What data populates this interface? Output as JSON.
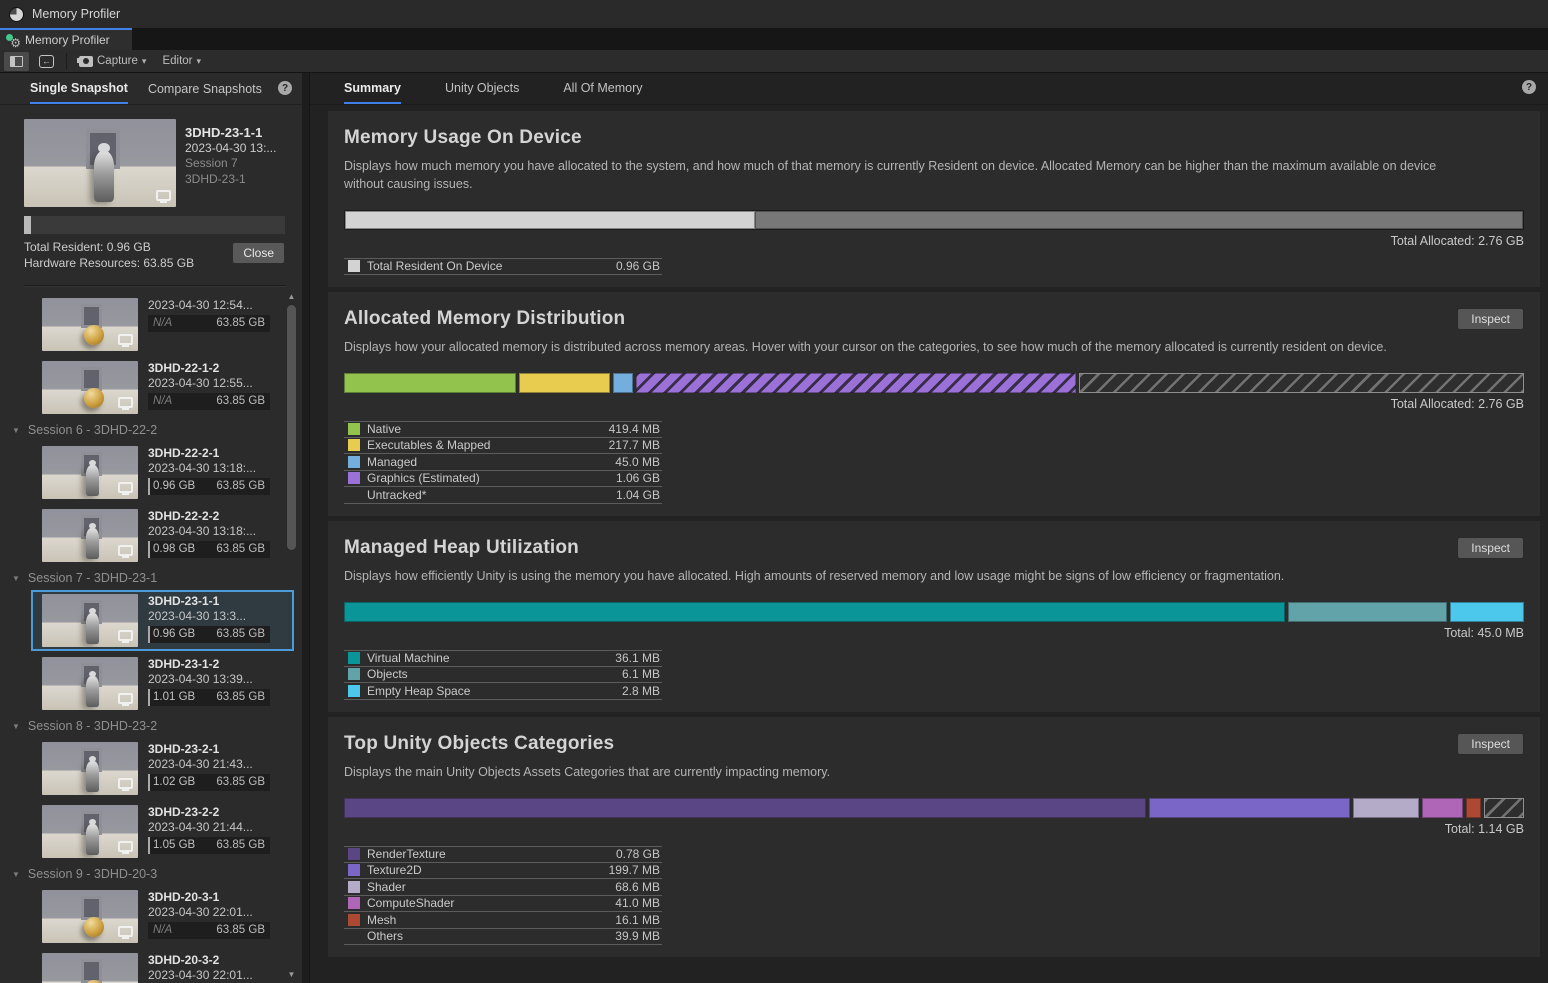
{
  "window": {
    "title": "Memory Profiler"
  },
  "doc_tab": {
    "label": "Memory Profiler"
  },
  "toolbar": {
    "capture_label": "Capture",
    "editor_label": "Editor",
    "import_glyph": "←",
    "caret": "▾"
  },
  "sidebar": {
    "tabs": [
      {
        "label": "Single Snapshot"
      },
      {
        "label": "Compare Snapshots"
      }
    ],
    "selected_snapshot": {
      "name": "3DHD-23-1-1",
      "date": "2023-04-30 13:...",
      "session": "Session 7",
      "product": "3DHD-23-1",
      "resident_bar_pct": "2.5%",
      "total_resident": "Total Resident: 0.96 GB",
      "hardware_resources": "Hardware Resources: 63.85 GB",
      "close_label": "Close"
    },
    "session_headers": [
      "Session 6 - 3DHD-22-2",
      "Session 7 - 3DHD-23-1",
      "Session 8 - 3DHD-23-2",
      "Session 9 - 3DHD-20-3"
    ],
    "items": [
      {
        "name": "",
        "date": "2023-04-30 12:54...",
        "resident": "N/A",
        "hardware": "63.85 GB",
        "thumb": "gold-ball"
      },
      {
        "name": "3DHD-22-1-2",
        "date": "2023-04-30 12:55...",
        "resident": "N/A",
        "hardware": "63.85 GB",
        "thumb": "gold-ball"
      },
      {
        "name": "3DHD-22-2-1",
        "date": "2023-04-30 13:18:...",
        "resident": "0.96 GB",
        "hardware": "63.85 GB",
        "thumb": "robot"
      },
      {
        "name": "3DHD-22-2-2",
        "date": "2023-04-30 13:18:...",
        "resident": "0.98 GB",
        "hardware": "63.85 GB",
        "thumb": "robot"
      },
      {
        "name": "3DHD-23-1-1",
        "date": "2023-04-30 13:3...",
        "resident": "0.96 GB",
        "hardware": "63.85 GB",
        "thumb": "robot",
        "selected": true
      },
      {
        "name": "3DHD-23-1-2",
        "date": "2023-04-30 13:39...",
        "resident": "1.01 GB",
        "hardware": "63.85 GB",
        "thumb": "robot"
      },
      {
        "name": "3DHD-23-2-1",
        "date": "2023-04-30 21:43...",
        "resident": "1.02 GB",
        "hardware": "63.85 GB",
        "thumb": "robot"
      },
      {
        "name": "3DHD-23-2-2",
        "date": "2023-04-30 21:44...",
        "resident": "1.05 GB",
        "hardware": "63.85 GB",
        "thumb": "robot"
      },
      {
        "name": "3DHD-20-3-1",
        "date": "2023-04-30 22:01...",
        "resident": "N/A",
        "hardware": "63.85 GB",
        "thumb": "gold-ball"
      },
      {
        "name": "3DHD-20-3-2",
        "date": "2023-04-30 22:01...",
        "resident": "N/A",
        "hardware": "63.85 GB",
        "thumb": "gold-ball"
      }
    ]
  },
  "main": {
    "tabs": [
      "Summary",
      "Unity Objects",
      "All Of Memory"
    ],
    "sections": {
      "memory_usage": {
        "title": "Memory Usage On Device",
        "description": "Displays how much memory you have allocated to the system, and how much of that memory is currently Resident on device. Allocated Memory can be higher than the maximum available on device without causing issues.",
        "total_label": "Total Allocated: 2.76 GB",
        "bar": [
          {
            "name": "Total Resident On Device",
            "width": "34.8%",
            "color": "#d3d3d3"
          },
          {
            "name": "Allocated remainder",
            "width": "65.2%",
            "color": "#787878"
          }
        ],
        "legend": [
          {
            "label": "Total Resident On Device",
            "value": "0.96 GB",
            "color": "#d3d3d3"
          }
        ]
      },
      "allocated": {
        "title": "Allocated Memory Distribution",
        "inspect_label": "Inspect",
        "description": "Displays how your allocated memory is distributed across memory areas. Hover with your cursor on the categories, to see how much of the memory allocated is currently resident on device.",
        "total_label": "Total Allocated: 2.76 GB",
        "bar": [
          {
            "name": "Native",
            "width": "14.6%",
            "color": "#92c44d"
          },
          {
            "name": "Executables & Mapped",
            "width": "7.7%",
            "color": "#e7cc50"
          },
          {
            "name": "Managed",
            "width": "1.7%",
            "color": "#73aedc"
          },
          {
            "name": "Graphics (Estimated)",
            "width": "37.4%",
            "color": "#9b71d8"
          },
          {
            "name": "Untracked",
            "width": "37.8%",
            "color": "transparent"
          }
        ],
        "legend": [
          {
            "label": "Native",
            "value": "419.4 MB",
            "color": "#92c44d"
          },
          {
            "label": "Executables & Mapped",
            "value": "217.7 MB",
            "color": "#e7cc50"
          },
          {
            "label": "Managed",
            "value": "45.0 MB",
            "color": "#73aedc"
          },
          {
            "label": "Graphics (Estimated)",
            "value": "1.06 GB",
            "color": "#9b71d8"
          },
          {
            "label": "Untracked*",
            "value": "1.04 GB",
            "color": "transparent"
          }
        ]
      },
      "heap": {
        "title": "Managed Heap Utilization",
        "inspect_label": "Inspect",
        "description": "Displays how efficiently Unity is using the memory you have allocated. High amounts of reserved memory and low usage might be signs of low efficiency or fragmentation.",
        "total_label": "Total: 45.0 MB",
        "bar": [
          {
            "name": "Virtual Machine",
            "width": "80%",
            "color": "#0a9598"
          },
          {
            "name": "Objects",
            "width": "13.5%",
            "color": "#61a3a8"
          },
          {
            "name": "Empty Heap Space",
            "width": "6.3%",
            "color": "#4cc8ed"
          }
        ],
        "legend": [
          {
            "label": "Virtual Machine",
            "value": "36.1 MB",
            "color": "#0a9598"
          },
          {
            "label": "Objects",
            "value": "6.1 MB",
            "color": "#61a3a8"
          },
          {
            "label": "Empty Heap Space",
            "value": "2.8 MB",
            "color": "#4cc8ed"
          }
        ]
      },
      "top_objects": {
        "title": "Top Unity Objects Categories",
        "inspect_label": "Inspect",
        "description": "Displays the main Unity Objects Assets Categories that are currently impacting memory.",
        "total_label": "Total: 1.14 GB",
        "bar": [
          {
            "name": "RenderTexture",
            "width": "68%",
            "color": "#5a4685"
          },
          {
            "name": "Texture2D",
            "width": "17%",
            "color": "#7a66c6"
          },
          {
            "name": "Shader",
            "width": "5.6%",
            "color": "#b4abc9"
          },
          {
            "name": "ComputeShader",
            "width": "3.5%",
            "color": "#b066b6"
          },
          {
            "name": "Mesh",
            "width": "1.2%",
            "color": "#ad4933"
          },
          {
            "name": "Others",
            "width": "3.4%",
            "color": "transparent"
          }
        ],
        "legend": [
          {
            "label": "RenderTexture",
            "value": "0.78 GB",
            "color": "#5a4685"
          },
          {
            "label": "Texture2D",
            "value": "199.7 MB",
            "color": "#7a66c6"
          },
          {
            "label": "Shader",
            "value": "68.6 MB",
            "color": "#b4abc9"
          },
          {
            "label": "ComputeShader",
            "value": "41.0 MB",
            "color": "#b066b6"
          },
          {
            "label": "Mesh",
            "value": "16.1 MB",
            "color": "#ad4933"
          },
          {
            "label": "Others",
            "value": "39.9 MB",
            "color": "transparent"
          }
        ]
      }
    }
  }
}
